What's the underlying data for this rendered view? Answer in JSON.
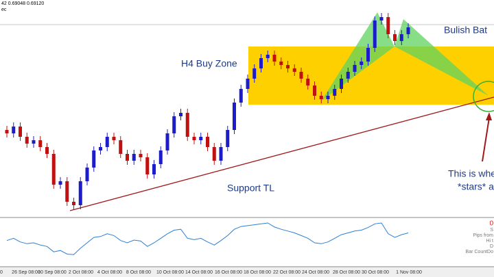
{
  "chart_data": {
    "type": "candlestick",
    "header": [
      "42 0.69048 0.69120",
      "ec"
    ],
    "annotations": {
      "zone": "H4 Buy Zone",
      "trendline": "Support TL",
      "pattern": "Bulish Bat",
      "note": [
        "This is whe",
        "*stars* al"
      ]
    },
    "up_color": "#1c1cc8",
    "down_color": "#c01010",
    "ylim": [
      0.661,
      0.695
    ],
    "open": [
      0.676,
      0.6755,
      0.6765,
      0.675,
      0.674,
      0.6745,
      0.6735,
      0.6725,
      0.668,
      0.6685,
      0.6655,
      0.665,
      0.6685,
      0.6705,
      0.673,
      0.6735,
      0.675,
      0.6745,
      0.6725,
      0.6715,
      0.6725,
      0.672,
      0.6695,
      0.671,
      0.673,
      0.6755,
      0.678,
      0.6785,
      0.675,
      0.6745,
      0.675,
      0.6735,
      0.6715,
      0.6735,
      0.676,
      0.68,
      0.682,
      0.6835,
      0.685,
      0.6865,
      0.687,
      0.686,
      0.6855,
      0.685,
      0.6845,
      0.6835,
      0.6825,
      0.681,
      0.6805,
      0.681,
      0.682,
      0.6835,
      0.6845,
      0.6855,
      0.686,
      0.688,
      0.692,
      0.6925,
      0.69,
      0.689,
      0.69
    ],
    "high": [
      0.6766,
      0.6771,
      0.6771,
      0.6756,
      0.6751,
      0.6751,
      0.6741,
      0.6731,
      0.6691,
      0.6691,
      0.6661,
      0.6691,
      0.6711,
      0.6736,
      0.6741,
      0.6756,
      0.6756,
      0.6751,
      0.6731,
      0.6731,
      0.6731,
      0.6726,
      0.6716,
      0.6736,
      0.6761,
      0.6786,
      0.6791,
      0.6791,
      0.6756,
      0.6756,
      0.6756,
      0.6741,
      0.6741,
      0.6766,
      0.6806,
      0.6826,
      0.6841,
      0.6856,
      0.6871,
      0.6876,
      0.6876,
      0.6866,
      0.6861,
      0.6856,
      0.6851,
      0.6841,
      0.6831,
      0.6816,
      0.6816,
      0.6826,
      0.6841,
      0.6851,
      0.6861,
      0.6866,
      0.6886,
      0.6926,
      0.6931,
      0.6931,
      0.6906,
      0.6906,
      0.6916
    ],
    "low": [
      0.6749,
      0.6749,
      0.6744,
      0.6734,
      0.6734,
      0.6729,
      0.6719,
      0.6674,
      0.6674,
      0.6649,
      0.6644,
      0.6644,
      0.6679,
      0.6699,
      0.6724,
      0.6729,
      0.6739,
      0.6719,
      0.6709,
      0.6709,
      0.6714,
      0.6689,
      0.6689,
      0.6704,
      0.6724,
      0.6749,
      0.6774,
      0.6744,
      0.6739,
      0.6739,
      0.6729,
      0.6709,
      0.6709,
      0.6729,
      0.6754,
      0.6794,
      0.6814,
      0.6829,
      0.6844,
      0.6859,
      0.6854,
      0.6849,
      0.6844,
      0.6839,
      0.6829,
      0.6819,
      0.6804,
      0.6799,
      0.6799,
      0.6804,
      0.6814,
      0.6829,
      0.6839,
      0.6849,
      0.6854,
      0.6874,
      0.6914,
      0.6894,
      0.6884,
      0.6884,
      0.6894
    ],
    "close": [
      0.6755,
      0.6765,
      0.675,
      0.674,
      0.6745,
      0.6735,
      0.6725,
      0.668,
      0.6685,
      0.6655,
      0.665,
      0.6685,
      0.6705,
      0.673,
      0.6735,
      0.675,
      0.6745,
      0.6725,
      0.6715,
      0.6725,
      0.672,
      0.6695,
      0.671,
      0.673,
      0.6755,
      0.678,
      0.6785,
      0.675,
      0.6745,
      0.675,
      0.6735,
      0.6715,
      0.6735,
      0.676,
      0.68,
      0.682,
      0.6835,
      0.685,
      0.6865,
      0.687,
      0.686,
      0.6855,
      0.685,
      0.6845,
      0.6835,
      0.6825,
      0.681,
      0.6805,
      0.681,
      0.682,
      0.6835,
      0.6845,
      0.6855,
      0.686,
      0.688,
      0.692,
      0.6925,
      0.69,
      0.689,
      0.69,
      0.691
    ],
    "indicator": {
      "color": "#2a7fd4",
      "ylim": [
        0,
        100
      ],
      "labels": [
        "0",
        "S",
        "Pips from",
        "Hi t",
        "D",
        "Bar CountDo"
      ],
      "values": [
        55,
        60,
        52,
        48,
        50,
        45,
        42,
        30,
        33,
        25,
        24,
        38,
        50,
        62,
        64,
        70,
        66,
        55,
        50,
        56,
        54,
        42,
        50,
        60,
        70,
        78,
        80,
        60,
        57,
        60,
        52,
        45,
        55,
        66,
        80,
        86,
        88,
        90,
        92,
        94,
        85,
        80,
        76,
        72,
        66,
        60,
        50,
        48,
        52,
        60,
        68,
        72,
        76,
        78,
        84,
        92,
        94,
        70,
        62,
        68,
        72
      ]
    },
    "x_labels": [
      "0",
      "26 Sep 08:00",
      "30 Sep 08:00",
      "2 Oct 08:00",
      "4 Oct 08:00",
      "8 Oct 08:00",
      "10 Oct 08:00",
      "14 Oct 08:00",
      "16 Oct 08:00",
      "18 Oct 08:00",
      "22 Oct 08:00",
      "24 Oct 08:00",
      "28 Oct 08:00",
      "30 Oct 08:00",
      "1 Nov 08:00"
    ]
  }
}
